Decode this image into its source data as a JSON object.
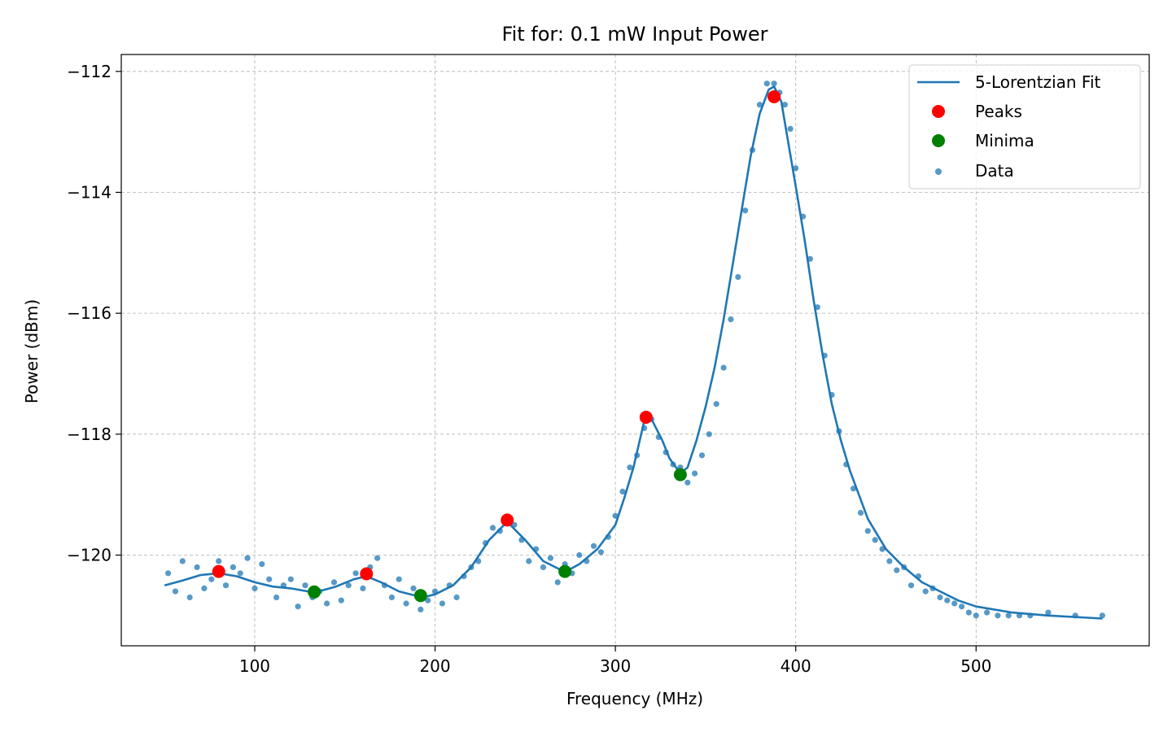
{
  "chart_data": {
    "type": "scatter",
    "title": "Fit for: 0.1 mW Input Power",
    "xlabel": "Frequency (MHz)",
    "ylabel": "Power (dBm)",
    "xlim": [
      26,
      596
    ],
    "ylim": [
      -121.5,
      -111.72
    ],
    "xticks": [
      100,
      200,
      300,
      400,
      500
    ],
    "yticks": [
      -120,
      -118,
      -116,
      -114,
      -112
    ],
    "ytick_labels": [
      "−120",
      "−118",
      "−116",
      "−114",
      "−112"
    ],
    "grid": true,
    "legend_position": "top-right",
    "colors": {
      "fit": "#1f77b4",
      "data": "#1f77b4",
      "peaks": "#ff0000",
      "minima": "#008000"
    },
    "series": [
      {
        "name": "5-Lorentzian Fit",
        "kind": "line",
        "x": [
          50,
          60,
          70,
          80,
          90,
          100,
          110,
          120,
          133,
          145,
          155,
          162,
          170,
          180,
          193,
          200,
          210,
          220,
          230,
          240,
          250,
          260,
          272,
          280,
          290,
          300,
          305,
          310,
          316,
          320,
          326,
          330,
          336,
          340,
          345,
          350,
          355,
          360,
          365,
          370,
          375,
          380,
          385,
          388,
          392,
          396,
          400,
          405,
          410,
          415,
          420,
          425,
          430,
          440,
          450,
          460,
          470,
          480,
          490,
          500,
          520,
          540,
          570
        ],
        "y": [
          -120.5,
          -120.42,
          -120.33,
          -120.3,
          -120.35,
          -120.45,
          -120.52,
          -120.55,
          -120.62,
          -120.52,
          -120.4,
          -120.35,
          -120.45,
          -120.6,
          -120.7,
          -120.65,
          -120.5,
          -120.2,
          -119.75,
          -119.45,
          -119.75,
          -120.1,
          -120.28,
          -120.15,
          -119.9,
          -119.5,
          -119.05,
          -118.55,
          -117.78,
          -117.75,
          -118.1,
          -118.4,
          -118.65,
          -118.55,
          -118.1,
          -117.55,
          -116.9,
          -116.1,
          -115.2,
          -114.3,
          -113.4,
          -112.7,
          -112.3,
          -112.25,
          -112.5,
          -113.2,
          -113.9,
          -114.8,
          -115.8,
          -116.7,
          -117.5,
          -118.1,
          -118.6,
          -119.4,
          -119.9,
          -120.2,
          -120.45,
          -120.6,
          -120.75,
          -120.85,
          -120.95,
          -121.0,
          -121.05
        ]
      },
      {
        "name": "Peaks",
        "kind": "marker",
        "x": [
          80,
          162,
          240,
          317,
          388
        ],
        "y": [
          -120.27,
          -120.31,
          -119.42,
          -117.72,
          -112.42
        ]
      },
      {
        "name": "Minima",
        "kind": "marker",
        "x": [
          133,
          192,
          272,
          336
        ],
        "y": [
          -120.61,
          -120.67,
          -120.27,
          -118.67
        ]
      },
      {
        "name": "Data",
        "kind": "scatter",
        "x": [
          52,
          56,
          60,
          64,
          68,
          72,
          76,
          80,
          84,
          88,
          92,
          96,
          100,
          104,
          108,
          112,
          116,
          120,
          124,
          128,
          132,
          136,
          140,
          144,
          148,
          152,
          156,
          160,
          164,
          168,
          172,
          176,
          180,
          184,
          188,
          192,
          196,
          200,
          204,
          208,
          212,
          216,
          220,
          224,
          228,
          232,
          236,
          240,
          244,
          248,
          252,
          256,
          260,
          264,
          268,
          272,
          276,
          280,
          284,
          288,
          292,
          296,
          300,
          304,
          308,
          312,
          316,
          320,
          324,
          328,
          332,
          336,
          340,
          344,
          348,
          352,
          356,
          360,
          364,
          368,
          372,
          376,
          380,
          384,
          388,
          391,
          394,
          397,
          400,
          404,
          408,
          412,
          416,
          420,
          424,
          428,
          432,
          436,
          440,
          444,
          448,
          452,
          456,
          460,
          464,
          468,
          472,
          476,
          480,
          484,
          488,
          492,
          496,
          500,
          506,
          512,
          518,
          524,
          530,
          540,
          555,
          570
        ],
        "y": [
          -120.3,
          -120.6,
          -120.1,
          -120.7,
          -120.2,
          -120.55,
          -120.4,
          -120.1,
          -120.5,
          -120.2,
          -120.3,
          -120.05,
          -120.55,
          -120.15,
          -120.4,
          -120.7,
          -120.5,
          -120.4,
          -120.85,
          -120.5,
          -120.7,
          -120.6,
          -120.8,
          -120.45,
          -120.75,
          -120.5,
          -120.3,
          -120.55,
          -120.2,
          -120.05,
          -120.5,
          -120.7,
          -120.4,
          -120.8,
          -120.55,
          -120.9,
          -120.75,
          -120.6,
          -120.8,
          -120.5,
          -120.7,
          -120.35,
          -120.2,
          -120.1,
          -119.8,
          -119.55,
          -119.6,
          -119.4,
          -119.5,
          -119.75,
          -120.1,
          -119.9,
          -120.2,
          -120.05,
          -120.45,
          -120.15,
          -120.3,
          -120.0,
          -120.1,
          -119.85,
          -119.95,
          -119.7,
          -119.35,
          -118.95,
          -118.55,
          -118.35,
          -117.9,
          -117.75,
          -118.05,
          -118.3,
          -118.5,
          -118.55,
          -118.8,
          -118.65,
          -118.35,
          -118.0,
          -117.5,
          -116.9,
          -116.1,
          -115.4,
          -114.3,
          -113.3,
          -112.55,
          -112.2,
          -112.2,
          -112.35,
          -112.55,
          -112.95,
          -113.6,
          -114.4,
          -115.1,
          -115.9,
          -116.7,
          -117.35,
          -117.95,
          -118.5,
          -118.9,
          -119.3,
          -119.6,
          -119.75,
          -119.9,
          -120.1,
          -120.25,
          -120.2,
          -120.5,
          -120.35,
          -120.6,
          -120.55,
          -120.7,
          -120.75,
          -120.8,
          -120.85,
          -120.95,
          -121.0,
          -120.95,
          -121.0,
          -121.0,
          -121.0,
          -121.0,
          -120.95,
          -121.0,
          -121.0
        ]
      }
    ]
  }
}
